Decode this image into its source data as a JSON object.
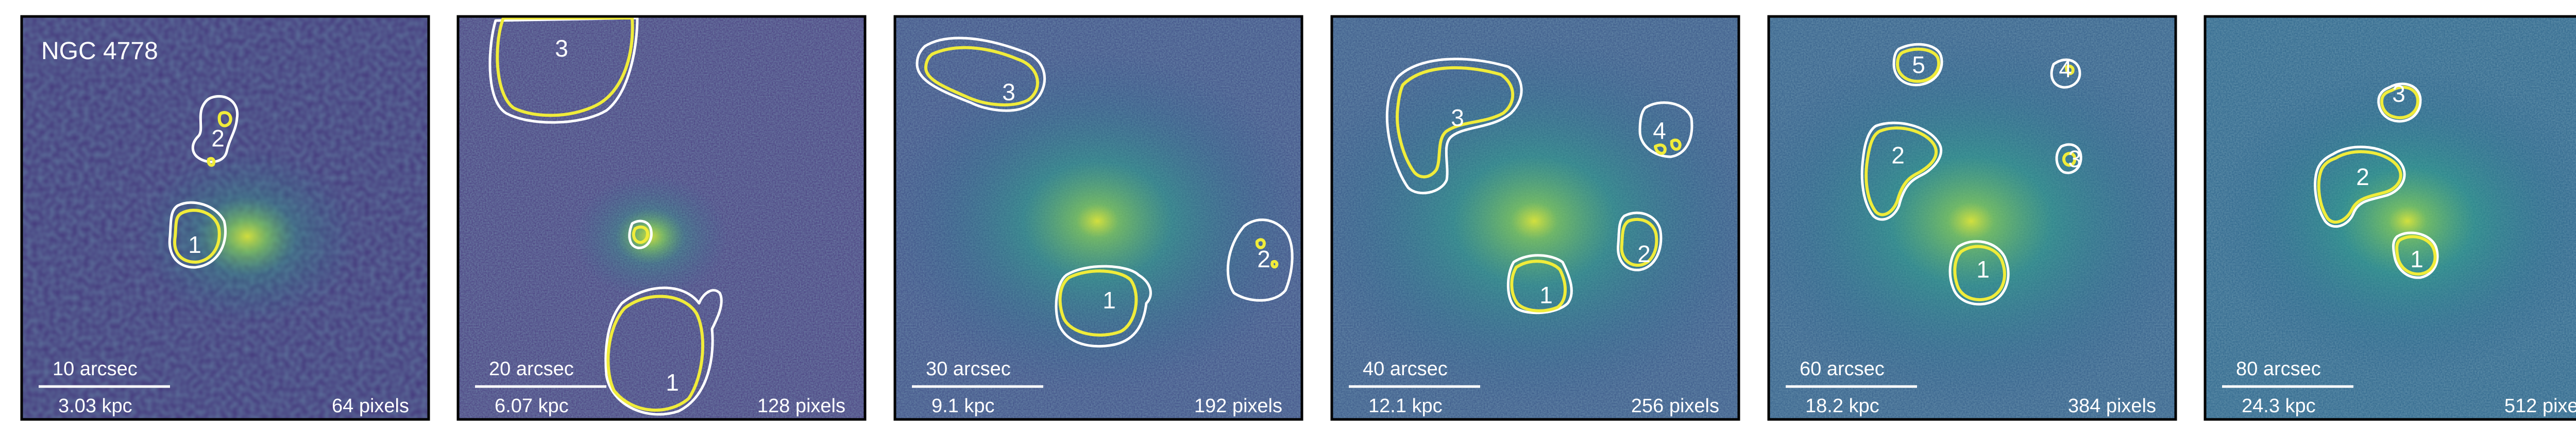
{
  "figure": {
    "panels": [
      {
        "target": "NGC 4778",
        "scalebar_arcsec": "10 arcsec",
        "scalebar_kpc": "3.03 kpc",
        "binning": "64 pixels",
        "regions": [
          "1",
          "2"
        ]
      },
      {
        "target": "",
        "scalebar_arcsec": "20 arcsec",
        "scalebar_kpc": "6.07 kpc",
        "binning": "128 pixels",
        "regions": [
          "1",
          "3"
        ]
      },
      {
        "target": "",
        "scalebar_arcsec": "30 arcsec",
        "scalebar_kpc": "9.1 kpc",
        "binning": "192 pixels",
        "regions": [
          "1",
          "2",
          "3"
        ]
      },
      {
        "target": "",
        "scalebar_arcsec": "40 arcsec",
        "scalebar_kpc": "12.1 kpc",
        "binning": "256 pixels",
        "regions": [
          "1",
          "2",
          "3",
          "4"
        ]
      },
      {
        "target": "",
        "scalebar_arcsec": "60 arcsec",
        "scalebar_kpc": "18.2 kpc",
        "binning": "384 pixels",
        "regions": [
          "1",
          "2",
          "3",
          "4",
          "5"
        ]
      },
      {
        "target": "",
        "scalebar_arcsec": "80 arcsec",
        "scalebar_kpc": "24.3 kpc",
        "binning": "512 pixels",
        "regions": [
          "1",
          "2",
          "3"
        ]
      }
    ],
    "colors": {
      "background_dark": "#3b2a68",
      "background_mid": "#2c6f8e",
      "core_green": "#4fb86e",
      "core_bright": "#c9e03c",
      "contour_white": "#ffffff",
      "contour_yellow": "#f0ec3a",
      "label_text": "#ffffff",
      "frame": "#000000"
    }
  }
}
